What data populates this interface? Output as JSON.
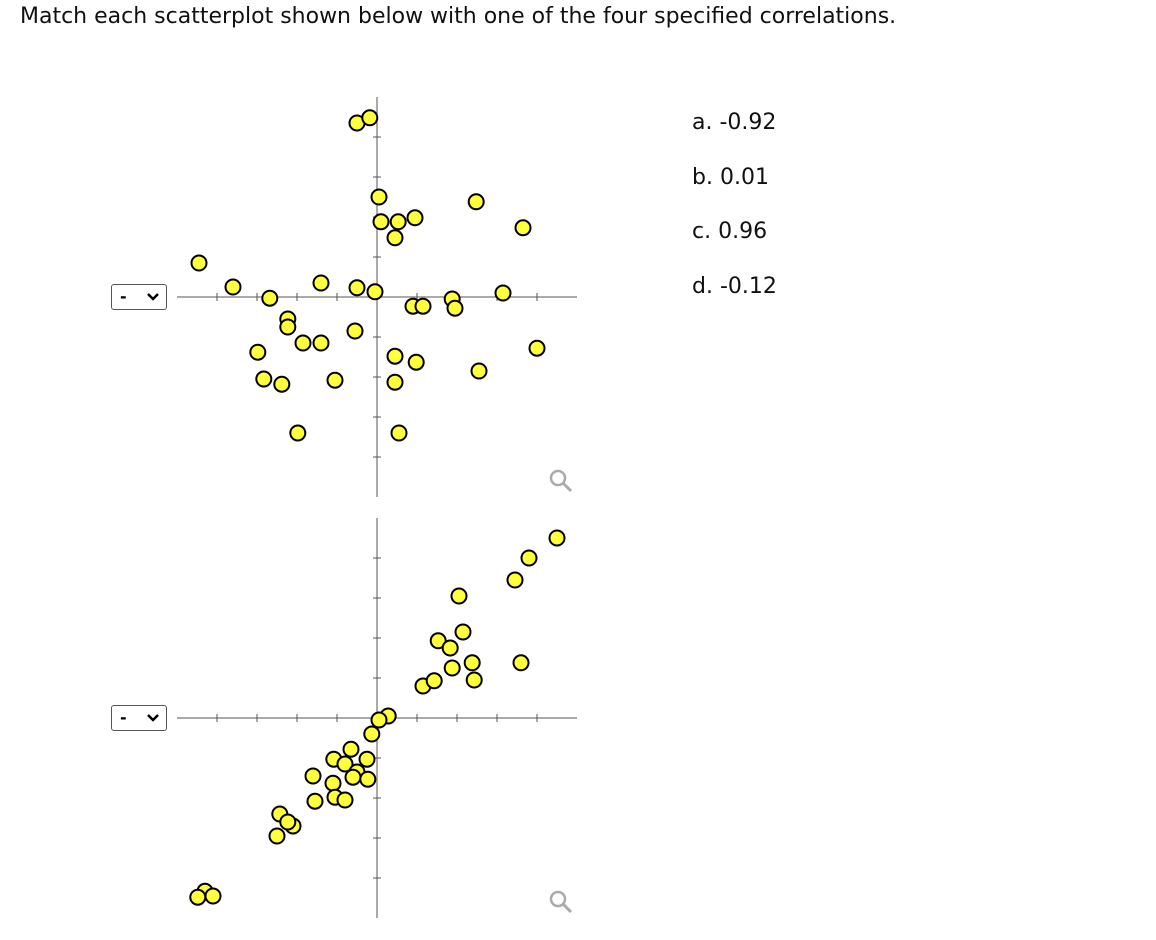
{
  "instruction": "Match each scatterplot shown below with one of the four specified correlations.",
  "options": [
    "a. -0.92",
    "b. 0.01",
    "c. 0.96",
    "d. -0.12"
  ],
  "plots": [
    {
      "type": "scatter",
      "select": "-",
      "xlim": [
        -5,
        5
      ],
      "ylim": [
        -5,
        5
      ],
      "xticks": [
        -4,
        -3,
        -2,
        -1,
        1,
        2,
        3,
        4
      ],
      "yticks": [
        -4,
        -3,
        -2,
        -1,
        1,
        2,
        3,
        4
      ],
      "x": [
        -0.5,
        -0.18,
        0.05,
        0.1,
        0.53,
        0.95,
        0.45,
        2.48,
        3.65,
        -4.45,
        -3.6,
        -2.68,
        -1.4,
        -0.5,
        -0.05,
        0.9,
        1.15,
        1.88,
        1.95,
        3.15,
        -2.23,
        -2.23,
        -0.55,
        -1.85,
        -1.4,
        -2.98,
        4,
        0.45,
        0.98,
        -2.83,
        -2.38,
        -1.05,
        0.45,
        2.55,
        -1.98,
        0.55
      ],
      "y": [
        4.35,
        4.48,
        2.5,
        1.88,
        1.88,
        1.98,
        1.48,
        2.38,
        1.73,
        0.85,
        0.25,
        -0.03,
        0.35,
        0.23,
        0.13,
        -0.23,
        -0.23,
        -0.05,
        -0.28,
        0.1,
        -0.55,
        -0.75,
        -0.85,
        -1.15,
        -1.15,
        -1.38,
        -1.28,
        -1.48,
        -1.63,
        -2.05,
        -2.18,
        -2.08,
        -2.13,
        -1.85,
        -3.4,
        -3.4
      ]
    },
    {
      "type": "scatter",
      "select": "-",
      "xlim": [
        -5,
        5
      ],
      "ylim": [
        -5,
        5
      ],
      "xticks": [
        -4,
        -3,
        -2,
        -1,
        1,
        2,
        3,
        4
      ],
      "yticks": [
        -4,
        -3,
        -2,
        -1,
        1,
        2,
        3,
        4
      ],
      "x": [
        4.5,
        3.8,
        3.45,
        2.05,
        1.53,
        2.15,
        1.83,
        2.38,
        1.88,
        2.43,
        3.6,
        1.15,
        1.43,
        0.28,
        0.05,
        -0.13,
        -0.65,
        -1.08,
        -0.8,
        -0.25,
        -0.5,
        -0.6,
        -0.23,
        -1.6,
        -1.1,
        -1.05,
        -0.8,
        -1.55,
        -2.43,
        -2.1,
        -2.5,
        -2.23,
        -4.3,
        -4.48,
        -4.1
      ],
      "y": [
        4.5,
        4,
        3.45,
        3.05,
        1.93,
        2.15,
        1.75,
        1.38,
        1.25,
        0.95,
        1.38,
        0.8,
        0.93,
        0.05,
        -0.05,
        -0.4,
        -0.78,
        -1.03,
        -1.15,
        -1.03,
        -1.35,
        -1.48,
        -1.53,
        -1.45,
        -1.63,
        -1.98,
        -2.05,
        -2.08,
        -2.4,
        -2.7,
        -2.95,
        -2.6,
        -4.33,
        -4.48,
        -4.45
      ]
    }
  ]
}
